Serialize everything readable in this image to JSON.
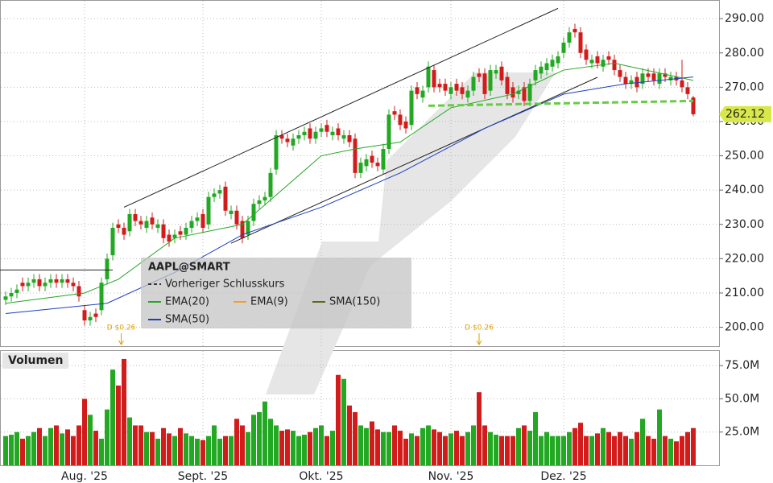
{
  "chart_data": [
    {
      "type": "candlestick",
      "symbol": "AAPL@SMART",
      "up_color": "#22a822",
      "down_color": "#d21c1c",
      "open": [
        208,
        209,
        210,
        213,
        212,
        213,
        214,
        212,
        213,
        214,
        213,
        214,
        213,
        212,
        205,
        202,
        204,
        205,
        214,
        221,
        230,
        229,
        228,
        233,
        231,
        229,
        232,
        229,
        230,
        227,
        226,
        228,
        227,
        229,
        231,
        233,
        230,
        238,
        239,
        241,
        233,
        234,
        231,
        227,
        231,
        236,
        237,
        238,
        246,
        256,
        255,
        253,
        255,
        256,
        258,
        255,
        257,
        259,
        256,
        258,
        255,
        256,
        255,
        245,
        247,
        250,
        248,
        246,
        252,
        263,
        262,
        260,
        259,
        270,
        267,
        270,
        275,
        271,
        271,
        268,
        271,
        270,
        267,
        269,
        274,
        274,
        269,
        274,
        276,
        273,
        270,
        268,
        270,
        266,
        272,
        274,
        275,
        276,
        277,
        280,
        283,
        287,
        286,
        281,
        277,
        279,
        276,
        279,
        278,
        275,
        273,
        271,
        273,
        271,
        274,
        274,
        271,
        274,
        272,
        273,
        272,
        270,
        267
      ],
      "high": [
        210.5,
        211.5,
        212.5,
        214.5,
        214.5,
        215.5,
        215.5,
        214.5,
        215.5,
        215.5,
        215.5,
        215.5,
        214.5,
        213.5,
        206.5,
        204.5,
        205.5,
        214.5,
        221.5,
        230.5,
        231.5,
        230.5,
        234.5,
        234.5,
        232.5,
        232.5,
        233.5,
        231.5,
        231.5,
        228.5,
        228.5,
        229.5,
        230.5,
        232.5,
        233.5,
        234.5,
        239.5,
        240.5,
        241.5,
        242.5,
        235.5,
        235.5,
        232.5,
        232.5,
        237.5,
        238.5,
        239.5,
        246.5,
        257.5,
        257.5,
        256.5,
        256.5,
        257.5,
        258.5,
        259.5,
        258.5,
        259.5,
        260.5,
        258.5,
        259.5,
        257.5,
        257.5,
        256.5,
        249.5,
        250.5,
        251.5,
        249.5,
        253.5,
        263.5,
        264.5,
        263.5,
        261.5,
        270.5,
        271.5,
        270.5,
        277.5,
        276.5,
        272.5,
        272.5,
        271.5,
        272.5,
        271.5,
        270.5,
        274.5,
        275.5,
        275.5,
        276.5,
        276.5,
        277.5,
        274.5,
        271.5,
        270.5,
        271.5,
        272.5,
        276.5,
        277.5,
        278.5,
        279.5,
        280.5,
        284.5,
        287.5,
        288.5,
        287.5,
        282.5,
        279.5,
        280.5,
        279.5,
        280.5,
        279.5,
        276.5,
        274.5,
        273.5,
        274.5,
        275.5,
        275.5,
        275.5,
        275.5,
        275.5,
        274.5,
        274.5,
        278,
        271.5,
        267.5
      ],
      "low": [
        206.5,
        207.5,
        208.5,
        210.5,
        210.5,
        211.5,
        210.5,
        210.5,
        211.5,
        211.5,
        211.5,
        211.5,
        210.5,
        207.5,
        200.5,
        200.5,
        201.5,
        203.5,
        212.5,
        219.5,
        227.5,
        225.5,
        226.5,
        229.5,
        228.5,
        227.5,
        228.5,
        227.5,
        224.5,
        223.5,
        224.5,
        225.5,
        225.5,
        227.5,
        229.5,
        227.5,
        228.5,
        236.5,
        237.5,
        232.5,
        231.5,
        228.5,
        224.5,
        225.5,
        229.5,
        234.5,
        235.5,
        236.5,
        244.5,
        253.5,
        252.5,
        251.5,
        253.5,
        254.5,
        253.5,
        253.5,
        255.5,
        255.5,
        254.5,
        254.5,
        253.5,
        252.5,
        243.5,
        243.5,
        245.5,
        246.5,
        245.5,
        244.5,
        250.5,
        260.5,
        257.5,
        256.5,
        257.5,
        266.5,
        265.5,
        268.5,
        268.5,
        268.5,
        267.5,
        266.5,
        267.5,
        266.5,
        265.5,
        267.5,
        271.5,
        266.5,
        267.5,
        272.5,
        270.5,
        266.5,
        265.5,
        266.5,
        264.5,
        264.5,
        270.5,
        272.5,
        273.5,
        274.5,
        275.5,
        278.5,
        281.5,
        284.5,
        278.5,
        276.5,
        275.5,
        275.5,
        274.5,
        276.5,
        273.5,
        271.5,
        269.5,
        269.5,
        268.5,
        269.5,
        271.5,
        270.5,
        269.5,
        271.5,
        270.5,
        270.5,
        268.5,
        266.5,
        261.5
      ],
      "close": [
        209,
        210,
        211,
        212,
        213,
        214,
        212,
        213,
        214,
        213,
        214,
        213,
        212,
        209,
        202,
        203,
        203,
        213,
        220,
        229,
        229,
        227,
        233,
        231,
        230,
        231,
        230,
        230,
        226,
        225,
        227,
        227,
        229,
        231,
        232,
        229,
        238,
        239,
        240,
        234,
        234,
        230,
        226,
        231,
        236,
        237,
        238,
        245,
        256,
        255,
        254,
        255,
        256,
        257,
        255,
        257,
        258,
        257,
        257,
        256,
        256,
        254,
        245,
        248,
        249,
        248,
        247,
        252,
        262,
        262,
        259,
        258,
        269,
        268,
        269,
        276,
        270,
        270,
        269,
        270,
        269,
        268,
        269,
        273,
        273,
        268,
        275,
        275,
        272,
        268,
        267,
        269,
        266,
        271,
        275,
        276,
        277,
        278,
        279,
        283,
        286,
        286,
        280,
        278,
        278,
        277,
        278,
        278,
        275,
        273,
        271,
        272,
        270,
        274,
        273,
        272,
        274,
        273,
        273,
        272,
        270,
        268,
        262.12
      ],
      "series": [
        {
          "name": "EMA(20)",
          "color": "#22a822",
          "x": [
            0,
            14,
            20,
            30,
            42,
            56,
            62,
            70,
            79,
            90,
            99,
            108,
            122
          ],
          "values": [
            207,
            210,
            214,
            226,
            230,
            250,
            252,
            254,
            264,
            268,
            275,
            277,
            272
          ]
        },
        {
          "name": "EMA(9)",
          "color": "#f0a030",
          "x": [],
          "values": []
        },
        {
          "name": "SMA(150)",
          "color": "#556b1e",
          "x": [],
          "values": []
        },
        {
          "name": "SMA(50)",
          "color": "#1a3fc0",
          "x": [
            0,
            18,
            30,
            42,
            56,
            70,
            85,
            99,
            110,
            122
          ],
          "values": [
            204,
            207,
            216,
            227,
            235,
            245,
            258,
            268,
            271,
            273
          ]
        }
      ],
      "reference_line": {
        "name": "Vorheriger Schlusskurs",
        "color": "#66cc44",
        "x": [
          75,
          122
        ],
        "values": [
          264.6,
          266
        ]
      },
      "trendlines": [
        {
          "x": [
            21,
            98
          ],
          "values": [
            235,
            293
          ]
        },
        {
          "x": [
            40,
            105
          ],
          "values": [
            224.5,
            272.9
          ]
        },
        {
          "x": [
            -1,
            19
          ],
          "values": [
            216.7,
            216.7
          ]
        }
      ],
      "annotations": [
        {
          "text": "D $0.26",
          "x": 20.5
        },
        {
          "text": "D $0.26",
          "x": 84
        }
      ],
      "ylim": [
        194.5,
        295.2
      ],
      "yticks": [
        {
          "value": 200,
          "label": "200.00"
        },
        {
          "value": 210,
          "label": "210.00"
        },
        {
          "value": 220,
          "label": "220.00"
        },
        {
          "value": 230,
          "label": "230.00"
        },
        {
          "value": 240,
          "label": "240.00"
        },
        {
          "value": 250,
          "label": "250.00"
        },
        {
          "value": 260,
          "label": "260.00"
        },
        {
          "value": 270,
          "label": "270.00"
        },
        {
          "value": 280,
          "label": "280.00"
        },
        {
          "value": 290,
          "label": "290.00"
        }
      ]
    },
    {
      "type": "bar",
      "title": "Volumen",
      "values": [
        22,
        23,
        25,
        20,
        22,
        25,
        28,
        22,
        28,
        30,
        24,
        27,
        22,
        30,
        50,
        38,
        26,
        20,
        42,
        72,
        60,
        80,
        36,
        30,
        30,
        25,
        25,
        20,
        28,
        24,
        22,
        28,
        24,
        22,
        20,
        19,
        22,
        30,
        20,
        22,
        22,
        35,
        30,
        25,
        38,
        40,
        48,
        35,
        30,
        26,
        27,
        26,
        22,
        23,
        25,
        28,
        30,
        22,
        26,
        68,
        65,
        45,
        40,
        30,
        28,
        33,
        27,
        25,
        25,
        30,
        26,
        20,
        24,
        22,
        28,
        30,
        27,
        25,
        22,
        24,
        26,
        22,
        25,
        30,
        55,
        30,
        25,
        23,
        22,
        22,
        22,
        28,
        30,
        26,
        40,
        22,
        25,
        22,
        22,
        22,
        25,
        28,
        32,
        22,
        22,
        24,
        28,
        25,
        22,
        25,
        22,
        20,
        25,
        35,
        22,
        20,
        42,
        22,
        20,
        18,
        22,
        25,
        28
      ],
      "ylim": [
        0,
        86
      ],
      "yticks": [
        {
          "value": 25,
          "label": "25.0M"
        },
        {
          "value": 50,
          "label": "50.0M"
        },
        {
          "value": 75,
          "label": "75.0M"
        }
      ],
      "xticks": [
        {
          "value": 14,
          "label": "Aug. '25"
        },
        {
          "value": 35,
          "label": "Sept. '25"
        },
        {
          "value": 56,
          "label": "Okt. '25"
        },
        {
          "value": 79,
          "label": "Nov. '25"
        },
        {
          "value": 99,
          "label": "Dez. '25"
        }
      ]
    }
  ]
}
